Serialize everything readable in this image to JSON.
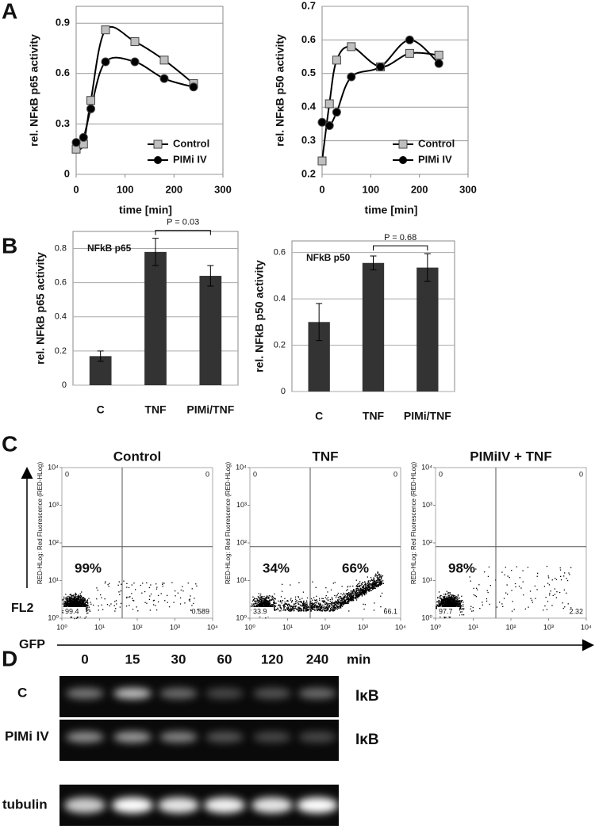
{
  "panel_labels": [
    "A",
    "B",
    "C",
    "D"
  ],
  "chart_data": [
    {
      "type": "line",
      "xlabel": "time [min]",
      "ylabel": "rel. NFκB p65 activity",
      "x": [
        0,
        15,
        30,
        60,
        120,
        180,
        240
      ],
      "series": [
        {
          "name": "Control",
          "color": "#bfbfbf",
          "marker": "square",
          "values": [
            0.15,
            0.18,
            0.44,
            0.86,
            0.79,
            0.68,
            0.54
          ]
        },
        {
          "name": "PIMi IV",
          "color": "#000000",
          "marker": "circle",
          "values": [
            0.19,
            0.22,
            0.39,
            0.67,
            0.67,
            0.57,
            0.52
          ]
        }
      ],
      "xlim": [
        0,
        300
      ],
      "xticks": [
        0,
        100,
        200,
        300
      ],
      "ylim": [
        0,
        1
      ],
      "yticks": [
        0,
        0.3,
        0.6,
        0.9
      ],
      "grid": true,
      "legend": "lower right"
    },
    {
      "type": "line",
      "xlabel": "time [min]",
      "ylabel": "rel. NFκB p50 activity",
      "x": [
        0,
        15,
        30,
        60,
        120,
        180,
        240
      ],
      "series": [
        {
          "name": "Control",
          "color": "#bfbfbf",
          "marker": "square",
          "values": [
            0.24,
            0.41,
            0.54,
            0.58,
            0.52,
            0.56,
            0.555
          ]
        },
        {
          "name": "PIMi IV",
          "color": "#000000",
          "marker": "circle",
          "values": [
            0.355,
            0.345,
            0.385,
            0.49,
            0.52,
            0.6,
            0.53
          ]
        }
      ],
      "xlim": [
        0,
        300
      ],
      "xticks": [
        0,
        100,
        200,
        300
      ],
      "ylim": [
        0.2,
        0.7
      ],
      "yticks": [
        0.2,
        0.3,
        0.4,
        0.5,
        0.6,
        0.7
      ],
      "grid": true,
      "legend": "lower right"
    },
    {
      "type": "bar",
      "ylabel": "rel. NFkB p65 activity",
      "inset_label": "NFkB p65",
      "annotation": "P = 0.03",
      "categories": [
        "C",
        "TNF",
        "PIMi/TNF"
      ],
      "values": [
        0.17,
        0.78,
        0.64
      ],
      "errors": [
        0.03,
        0.08,
        0.06
      ],
      "color": "#333333",
      "ylim": [
        0,
        0.9
      ],
      "yticks": [
        0,
        0.2,
        0.4,
        0.6,
        0.8
      ],
      "grid": true
    },
    {
      "type": "bar",
      "ylabel": "rel. NFkB p50 activity",
      "inset_label": "NFkB p50",
      "annotation": "P = 0.68",
      "categories": [
        "C",
        "TNF",
        "PIMi/TNF"
      ],
      "values": [
        0.3,
        0.555,
        0.535
      ],
      "errors": [
        0.08,
        0.03,
        0.06
      ],
      "color": "#333333",
      "ylim": [
        0,
        0.65
      ],
      "yticks": [
        0,
        0.2,
        0.4,
        0.6
      ],
      "grid": true
    }
  ],
  "flow": {
    "x_arrow_label": "GFP",
    "y_arrow_label": "FL2",
    "ylabel": "RED-HLog: Red Fluorescence (RED-HLog)",
    "lim": [
      1,
      10000
    ],
    "ticks": [
      {
        "value": 1,
        "label": "10⁰"
      },
      {
        "value": 10,
        "label": "10¹"
      },
      {
        "value": 100,
        "label": "10²"
      },
      {
        "value": 1000,
        "label": "10³"
      },
      {
        "value": 10000,
        "label": "10⁴"
      }
    ],
    "panels": [
      {
        "title": "Control",
        "percent_left": "99%",
        "corners": [
          "0",
          "0",
          "99.4",
          "0.589"
        ]
      },
      {
        "title": "TNF",
        "percent_left": "34%",
        "percent_right": "66%",
        "corners": [
          "0",
          "0",
          "33.9",
          "66.1"
        ]
      },
      {
        "title": "PIMiIV + TNF",
        "percent_left": "98%",
        "corners": [
          "0",
          "0",
          "97.7",
          "2.32"
        ]
      }
    ]
  },
  "gel": {
    "times": [
      "0",
      "15",
      "30",
      "60",
      "120",
      "240"
    ],
    "unit": "min",
    "rows": [
      {
        "label": "C",
        "protein": "IκB"
      },
      {
        "label": "PIMi IV",
        "protein": "IκB"
      },
      {
        "label": "tubulin"
      }
    ]
  }
}
